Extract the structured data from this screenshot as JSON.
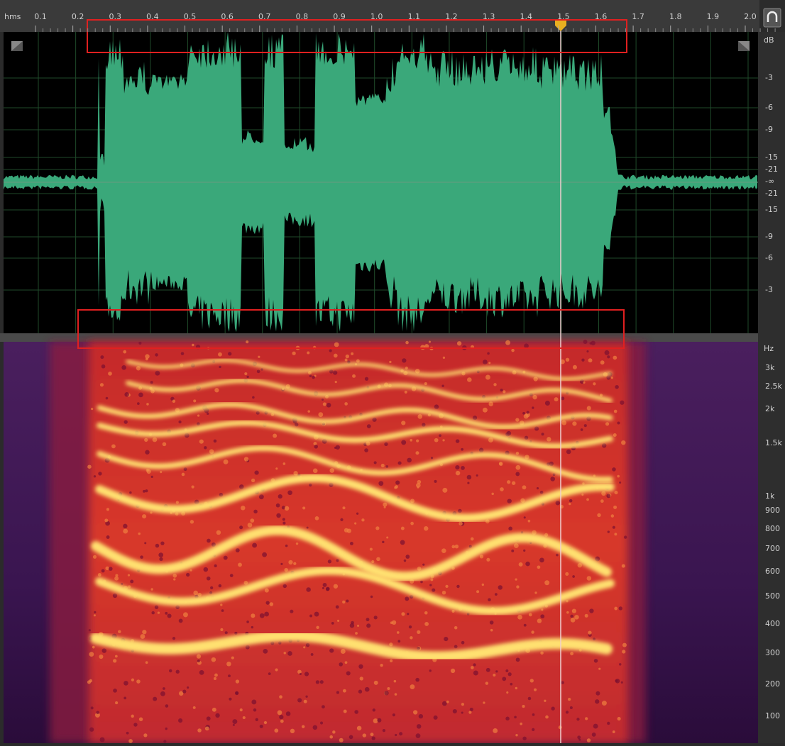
{
  "ruler": {
    "unit": "hms",
    "labels": [
      "0.1",
      "0.2",
      "0.3",
      "0.4",
      "0.5",
      "0.6",
      "0.7",
      "0.8",
      "0.9",
      "1.0",
      "1.1",
      "1.2",
      "1.3",
      "1.4",
      "1.5",
      "1.6",
      "1.7",
      "1.8",
      "1.9",
      "2.0"
    ]
  },
  "amplitude_scale": {
    "unit": "dB",
    "labels": [
      "-3",
      "-6",
      "-9",
      "-15",
      "-21",
      "-∞",
      "-21",
      "-15",
      "-9",
      "-6",
      "-3"
    ]
  },
  "frequency_scale": {
    "unit": "Hz",
    "labels": [
      "3k",
      "2.5k",
      "2k",
      "1.5k",
      "1k",
      "900",
      "800",
      "700",
      "600",
      "500",
      "400",
      "300",
      "200",
      "100"
    ]
  }
}
